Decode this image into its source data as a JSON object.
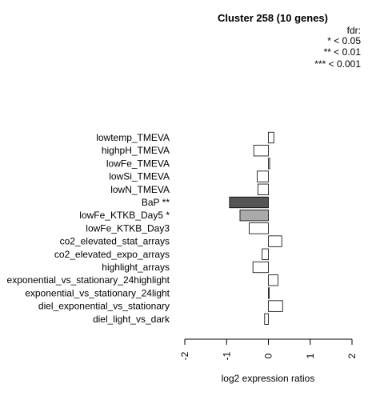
{
  "chart_data": {
    "type": "bar",
    "orientation": "horizontal",
    "title": "Cluster 258 (10 genes)",
    "xlabel": "log2 expression ratios",
    "ylabel": "",
    "xlim": [
      -2,
      2
    ],
    "xticks": [
      "-2",
      "-1",
      "0",
      "1",
      "2"
    ],
    "legend": {
      "position": "top-right",
      "lines": [
        "fdr:",
        "* < 0.05",
        "** < 0.01",
        "*** < 0.001"
      ]
    },
    "categories": [
      "lowtemp_TMEVA",
      "highpH_TMEVA",
      "lowFe_TMEVA",
      "lowSi_TMEVA",
      "lowN_TMEVA",
      "BaP **",
      "lowFe_KTKB_Day5 *",
      "lowFe_KTKB_Day3",
      "co2_elevated_stat_arrays",
      "co2_elevated_expo_arrays",
      "highlight_arrays",
      "exponential_vs_stationary_24highlight",
      "exponential_vs_stationary_24light",
      "diel_exponential_vs_stationary",
      "diel_light_vs_dark"
    ],
    "values": [
      0.13,
      -0.35,
      0.03,
      -0.27,
      -0.25,
      -0.93,
      -0.68,
      -0.46,
      0.32,
      -0.15,
      -0.37,
      0.23,
      0.01,
      0.34,
      -0.09
    ],
    "colors": [
      "#ffffff",
      "#ffffff",
      "#ffffff",
      "#ffffff",
      "#ffffff",
      "#555555",
      "#aaaaaa",
      "#ffffff",
      "#ffffff",
      "#ffffff",
      "#ffffff",
      "#ffffff",
      "#ffffff",
      "#ffffff",
      "#ffffff"
    ]
  }
}
